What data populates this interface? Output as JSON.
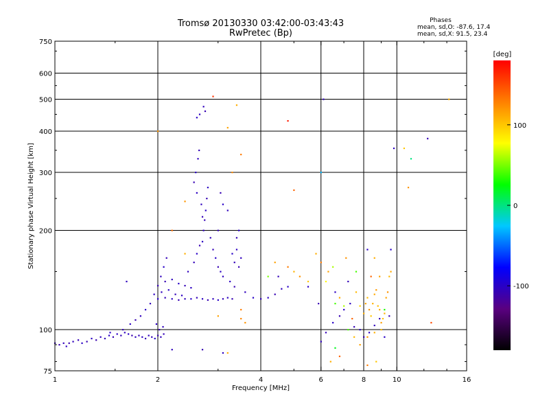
{
  "chart_data": {
    "type": "scatter",
    "title": "Tromsø 20130330 03:42:00-03:43:43",
    "subtitle": "RwPretec (Bp)",
    "xlabel": "Frequency [MHz]",
    "ylabel": "Stationary phase Virtual Height [km]",
    "x_scale": "log",
    "y_scale": "log",
    "xlim": [
      1,
      16
    ],
    "ylim": [
      75,
      750
    ],
    "xticks": [
      1,
      2,
      4,
      6,
      8,
      10,
      16
    ],
    "yticks": [
      75,
      100,
      200,
      300,
      400,
      500,
      600,
      750
    ],
    "x_gridlines": [
      2,
      4,
      6,
      8,
      10
    ],
    "y_gridlines": [
      100,
      200,
      300,
      400,
      500,
      600
    ],
    "legend": {
      "title": "Phases",
      "lines": [
        "mean, sd,O: -87.6, 17.4",
        "mean, sd,X:  91.5, 23.4"
      ]
    },
    "colorbar": {
      "label": "[deg]",
      "min": -180,
      "max": 180,
      "ticks": [
        100,
        0,
        -100
      ],
      "colors": [
        "#000000",
        "#5a0080",
        "#0000ff",
        "#00c8ff",
        "#00ff00",
        "#ffff00",
        "#ff8000",
        "#ff0000"
      ]
    },
    "series": [
      {
        "points": [
          [
            1.0,
            91,
            -105
          ],
          [
            1.03,
            90,
            -108
          ],
          [
            1.06,
            91,
            -105
          ],
          [
            1.08,
            89,
            -102
          ],
          [
            1.1,
            91,
            -110
          ],
          [
            1.13,
            92,
            -104
          ],
          [
            1.17,
            93,
            -106
          ],
          [
            1.2,
            91,
            -100
          ],
          [
            1.24,
            92,
            -108
          ],
          [
            1.28,
            94,
            -102
          ],
          [
            1.32,
            93,
            -110
          ],
          [
            1.36,
            95,
            -104
          ],
          [
            1.4,
            94,
            -106
          ],
          [
            1.44,
            96,
            -100
          ],
          [
            1.48,
            95,
            -108
          ],
          [
            1.52,
            97,
            -102
          ],
          [
            1.56,
            96,
            -106
          ],
          [
            1.6,
            98,
            -104
          ],
          [
            1.64,
            97,
            -100
          ],
          [
            1.68,
            96,
            -110
          ],
          [
            1.72,
            95,
            -104
          ],
          [
            1.76,
            96,
            -106
          ],
          [
            1.8,
            95,
            -102
          ],
          [
            1.84,
            94,
            -108
          ],
          [
            1.88,
            96,
            -104
          ],
          [
            1.92,
            95,
            -106
          ],
          [
            1.96,
            94,
            -100
          ],
          [
            2.0,
            96,
            -110
          ],
          [
            2.04,
            95,
            -104
          ],
          [
            2.08,
            97,
            -106
          ],
          [
            1.45,
            98,
            -100
          ],
          [
            1.58,
            100,
            -106
          ],
          [
            1.66,
            104,
            -102
          ],
          [
            1.72,
            107,
            -108
          ],
          [
            1.78,
            110,
            -104
          ],
          [
            1.84,
            115,
            -100
          ],
          [
            1.9,
            120,
            -106
          ],
          [
            1.95,
            128,
            -102
          ],
          [
            2.0,
            136,
            -108
          ],
          [
            2.04,
            145,
            -104
          ],
          [
            2.08,
            155,
            -100
          ],
          [
            2.12,
            165,
            -106
          ],
          [
            1.62,
            140,
            -104
          ],
          [
            1.98,
            104,
            -102
          ],
          [
            2.02,
            100,
            -108
          ],
          [
            2.07,
            102,
            -104
          ],
          [
            2.0,
            124,
            -100
          ],
          [
            2.1,
            125,
            -106
          ],
          [
            2.2,
            124,
            -102
          ],
          [
            2.3,
            123,
            -108
          ],
          [
            2.4,
            124,
            -104
          ],
          [
            2.5,
            124,
            -100
          ],
          [
            2.6,
            125,
            -106
          ],
          [
            2.7,
            124,
            -102
          ],
          [
            2.8,
            123,
            -108
          ],
          [
            2.9,
            124,
            -104
          ],
          [
            3.0,
            123,
            -100
          ],
          [
            3.1,
            124,
            -106
          ],
          [
            3.2,
            125,
            -102
          ],
          [
            3.3,
            124,
            -108
          ],
          [
            2.05,
            130,
            -104
          ],
          [
            2.15,
            132,
            -100
          ],
          [
            2.25,
            128,
            -106
          ],
          [
            2.35,
            127,
            -102
          ],
          [
            2.1,
            140,
            -108
          ],
          [
            2.2,
            142,
            -104
          ],
          [
            2.3,
            138,
            -100
          ],
          [
            2.4,
            136,
            -106
          ],
          [
            2.5,
            134,
            -102
          ],
          [
            2.45,
            150,
            -104
          ],
          [
            2.55,
            160,
            -106
          ],
          [
            2.6,
            170,
            -100
          ],
          [
            2.65,
            180,
            -108
          ],
          [
            2.7,
            185,
            -102
          ],
          [
            2.72,
            200,
            -104
          ],
          [
            2.74,
            215,
            -106
          ],
          [
            2.76,
            230,
            -100
          ],
          [
            2.78,
            250,
            -108
          ],
          [
            2.8,
            270,
            -102
          ],
          [
            2.62,
            330,
            -104
          ],
          [
            2.64,
            350,
            -106
          ],
          [
            2.58,
            300,
            -100
          ],
          [
            2.55,
            280,
            -108
          ],
          [
            2.6,
            260,
            -102
          ],
          [
            2.68,
            240,
            -104
          ],
          [
            2.7,
            220,
            -106
          ],
          [
            2.75,
            460,
            -108
          ],
          [
            2.72,
            475,
            -104
          ],
          [
            2.65,
            450,
            -102
          ],
          [
            2.6,
            440,
            -100
          ],
          [
            2.85,
            190,
            -104
          ],
          [
            2.9,
            175,
            -106
          ],
          [
            2.95,
            165,
            -100
          ],
          [
            3.0,
            155,
            -108
          ],
          [
            3.05,
            150,
            -102
          ],
          [
            3.1,
            145,
            -104
          ],
          [
            3.0,
            200,
            -106
          ],
          [
            3.1,
            240,
            -100
          ],
          [
            3.05,
            260,
            -108
          ],
          [
            3.2,
            230,
            -104
          ],
          [
            3.3,
            170,
            -100
          ],
          [
            3.35,
            160,
            -106
          ],
          [
            3.4,
            175,
            -102
          ],
          [
            3.45,
            155,
            -108
          ],
          [
            3.5,
            165,
            -104
          ],
          [
            3.45,
            200,
            -100
          ],
          [
            3.4,
            190,
            -106
          ],
          [
            3.25,
            140,
            -102
          ],
          [
            3.35,
            135,
            -108
          ],
          [
            3.6,
            130,
            -104
          ],
          [
            3.8,
            125,
            -100
          ],
          [
            4.0,
            124,
            -106
          ],
          [
            4.2,
            125,
            -102
          ],
          [
            4.4,
            128,
            -108
          ],
          [
            4.6,
            133,
            -104
          ],
          [
            4.8,
            135,
            -100
          ],
          [
            4.5,
            145,
            -106
          ],
          [
            5.5,
            135,
            -102
          ],
          [
            6.0,
            92,
            -104
          ],
          [
            6.2,
            98,
            -106
          ],
          [
            6.5,
            105,
            -100
          ],
          [
            6.8,
            110,
            -108
          ],
          [
            7.0,
            115,
            -102
          ],
          [
            7.3,
            120,
            -104
          ],
          [
            7.5,
            102,
            -106
          ],
          [
            7.8,
            100,
            -100
          ],
          [
            8.0,
            95,
            -108
          ],
          [
            8.3,
            98,
            -102
          ],
          [
            8.6,
            103,
            -104
          ],
          [
            8.9,
            108,
            -106
          ],
          [
            9.2,
            95,
            -100
          ],
          [
            9.5,
            110,
            -108
          ],
          [
            9.8,
            355,
            -102
          ],
          [
            6.1,
            500,
            -104
          ],
          [
            12.3,
            380,
            -106
          ],
          [
            9.6,
            175,
            -100
          ],
          [
            3.1,
            85,
            -102
          ],
          [
            2.7,
            87,
            -108
          ],
          [
            2.2,
            87,
            -104
          ],
          [
            8.2,
            175,
            -100
          ],
          [
            7.2,
            140,
            -106
          ],
          [
            6.6,
            130,
            -102
          ],
          [
            5.9,
            120,
            -108
          ],
          [
            2.0,
            400,
            120
          ],
          [
            2.4,
            245,
            120
          ],
          [
            3.4,
            480,
            110
          ],
          [
            3.5,
            340,
            130
          ],
          [
            3.3,
            300,
            125
          ],
          [
            2.9,
            510,
            160
          ],
          [
            3.2,
            410,
            115
          ],
          [
            4.8,
            430,
            170
          ],
          [
            5.0,
            265,
            140
          ],
          [
            6.0,
            300,
            -30
          ],
          [
            10.5,
            355,
            100
          ],
          [
            11.0,
            330,
            0
          ],
          [
            10.8,
            270,
            120
          ],
          [
            14.2,
            500,
            110
          ],
          [
            12.6,
            105,
            150
          ],
          [
            2.2,
            200,
            135
          ],
          [
            2.4,
            170,
            110
          ],
          [
            3.5,
            115,
            130
          ],
          [
            3.6,
            105,
            120
          ],
          [
            3.5,
            108,
            125
          ],
          [
            3.0,
            110,
            115
          ],
          [
            3.2,
            85,
            110
          ],
          [
            6.8,
            125,
            110
          ],
          [
            7.0,
            118,
            60
          ],
          [
            7.4,
            108,
            140
          ],
          [
            7.6,
            130,
            105
          ],
          [
            7.8,
            118,
            95
          ],
          [
            8.0,
            112,
            110
          ],
          [
            8.1,
            120,
            115
          ],
          [
            8.2,
            125,
            105
          ],
          [
            8.3,
            115,
            120
          ],
          [
            8.4,
            110,
            100
          ],
          [
            8.5,
            120,
            108
          ],
          [
            8.6,
            128,
            112
          ],
          [
            8.7,
            132,
            118
          ],
          [
            8.8,
            118,
            104
          ],
          [
            8.9,
            115,
            110
          ],
          [
            9.0,
            105,
            116
          ],
          [
            9.1,
            108,
            102
          ],
          [
            9.2,
            112,
            108
          ],
          [
            9.3,
            125,
            114
          ],
          [
            9.4,
            130,
            120
          ],
          [
            9.5,
            145,
            106
          ],
          [
            9.6,
            150,
            112
          ],
          [
            9.0,
            100,
            104
          ],
          [
            8.6,
            98,
            110
          ],
          [
            8.2,
            95,
            120
          ],
          [
            7.8,
            90,
            115
          ],
          [
            7.5,
            95,
            105
          ],
          [
            7.2,
            100,
            40
          ],
          [
            6.6,
            88,
            20
          ],
          [
            6.8,
            83,
            140
          ],
          [
            6.4,
            80,
            110
          ],
          [
            8.2,
            78,
            130
          ],
          [
            8.7,
            80,
            100
          ],
          [
            8.4,
            145,
            140
          ],
          [
            8.9,
            145,
            115
          ],
          [
            8.6,
            165,
            110
          ],
          [
            7.1,
            165,
            120
          ],
          [
            6.5,
            155,
            60
          ],
          [
            5.8,
            170,
            110
          ],
          [
            6.0,
            160,
            130
          ],
          [
            6.3,
            150,
            115
          ],
          [
            5.5,
            140,
            100
          ],
          [
            5.2,
            145,
            120
          ],
          [
            5.0,
            150,
            108
          ],
          [
            4.8,
            155,
            130
          ],
          [
            4.4,
            160,
            115
          ],
          [
            4.2,
            145,
            50
          ],
          [
            6.2,
            140,
            80
          ],
          [
            6.6,
            120,
            40
          ],
          [
            7.6,
            150,
            40
          ],
          [
            9.2,
            115,
            30
          ]
        ]
      }
    ]
  }
}
